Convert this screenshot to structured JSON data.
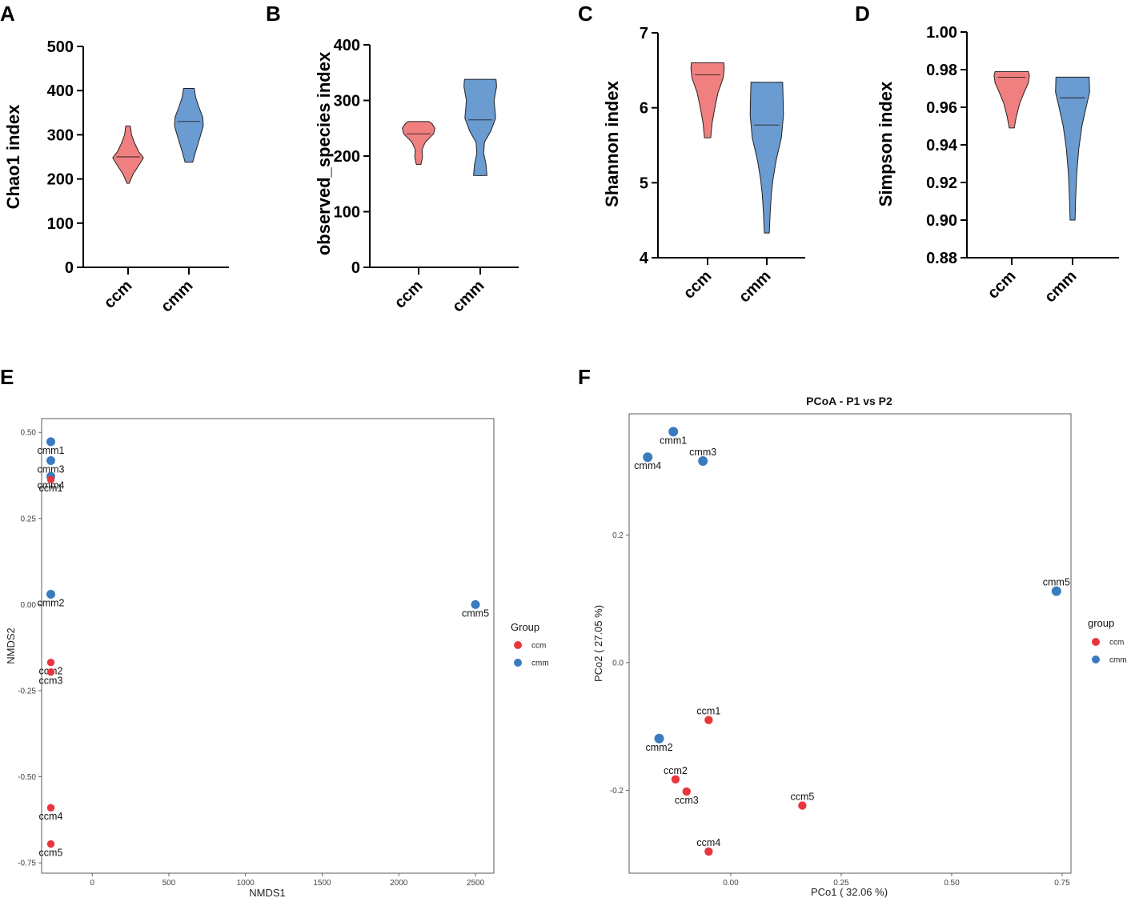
{
  "colors": {
    "violin_ccm": "#f08080",
    "violin_cmm": "#6a9bd1",
    "point_ccm": "#e8363d",
    "point_cmm": "#3a7bc0"
  },
  "chart_data": [
    {
      "panel": "A",
      "type": "violin",
      "ylabel": "Chao1 index",
      "ylim": [
        0,
        500
      ],
      "yticks": [
        0,
        100,
        200,
        300,
        400,
        500
      ],
      "categories": [
        "ccm",
        "cmm"
      ],
      "violins": [
        {
          "category": "ccm",
          "min": 190,
          "max": 320,
          "median": 250,
          "profile": [
            [
              190,
              0.06
            ],
            [
              210,
              0.25
            ],
            [
              230,
              0.55
            ],
            [
              248,
              0.8
            ],
            [
              262,
              0.55
            ],
            [
              280,
              0.35
            ],
            [
              300,
              0.18
            ],
            [
              320,
              0.12
            ]
          ]
        },
        {
          "category": "cmm",
          "min": 238,
          "max": 405,
          "median": 330,
          "profile": [
            [
              238,
              0.2
            ],
            [
              262,
              0.35
            ],
            [
              290,
              0.55
            ],
            [
              320,
              0.75
            ],
            [
              340,
              0.72
            ],
            [
              365,
              0.5
            ],
            [
              385,
              0.35
            ],
            [
              405,
              0.28
            ]
          ]
        }
      ]
    },
    {
      "panel": "B",
      "type": "violin",
      "ylabel": "observed_species index",
      "ylim": [
        0,
        400
      ],
      "yticks": [
        0,
        100,
        200,
        300,
        400
      ],
      "categories": [
        "ccm",
        "cmm"
      ],
      "violins": [
        {
          "category": "ccm",
          "min": 185,
          "max": 262,
          "median": 240,
          "profile": [
            [
              185,
              0.12
            ],
            [
              198,
              0.2
            ],
            [
              212,
              0.18
            ],
            [
              225,
              0.35
            ],
            [
              240,
              0.78
            ],
            [
              250,
              0.85
            ],
            [
              258,
              0.7
            ],
            [
              262,
              0.55
            ]
          ]
        },
        {
          "category": "cmm",
          "min": 165,
          "max": 338,
          "median": 265,
          "profile": [
            [
              165,
              0.35
            ],
            [
              185,
              0.3
            ],
            [
              205,
              0.18
            ],
            [
              225,
              0.22
            ],
            [
              245,
              0.55
            ],
            [
              268,
              0.8
            ],
            [
              300,
              0.72
            ],
            [
              325,
              0.85
            ],
            [
              338,
              0.82
            ]
          ]
        }
      ]
    },
    {
      "panel": "C",
      "type": "violin",
      "ylabel": "Shannon index",
      "ylim": [
        4,
        7
      ],
      "yticks": [
        4,
        5,
        6,
        7
      ],
      "categories": [
        "ccm",
        "cmm"
      ],
      "violins": [
        {
          "category": "ccm",
          "min": 5.6,
          "max": 6.6,
          "median": 6.44,
          "profile": [
            [
              5.6,
              0.15
            ],
            [
              5.8,
              0.22
            ],
            [
              6.0,
              0.35
            ],
            [
              6.2,
              0.5
            ],
            [
              6.4,
              0.75
            ],
            [
              6.52,
              0.8
            ],
            [
              6.6,
              0.78
            ]
          ]
        },
        {
          "category": "cmm",
          "min": 4.33,
          "max": 6.34,
          "median": 5.77,
          "profile": [
            [
              4.33,
              0.12
            ],
            [
              4.6,
              0.16
            ],
            [
              4.85,
              0.22
            ],
            [
              5.05,
              0.3
            ],
            [
              5.3,
              0.45
            ],
            [
              5.6,
              0.7
            ],
            [
              5.9,
              0.8
            ],
            [
              6.15,
              0.78
            ],
            [
              6.34,
              0.76
            ]
          ]
        }
      ]
    },
    {
      "panel": "D",
      "type": "violin",
      "ylabel": "Simpson index",
      "ylim": [
        0.88,
        1.0
      ],
      "yticks": [
        0.88,
        0.9,
        0.92,
        0.94,
        0.96,
        0.98,
        1.0
      ],
      "ytick_labels": [
        "0.88",
        "0.90",
        "0.92",
        "0.94",
        "0.96",
        "0.98",
        "1.00"
      ],
      "categories": [
        "ccm",
        "cmm"
      ],
      "violins": [
        {
          "category": "ccm",
          "min": 0.949,
          "max": 0.979,
          "median": 0.976,
          "profile": [
            [
              0.949,
              0.12
            ],
            [
              0.955,
              0.22
            ],
            [
              0.962,
              0.38
            ],
            [
              0.968,
              0.6
            ],
            [
              0.973,
              0.8
            ],
            [
              0.977,
              0.85
            ],
            [
              0.979,
              0.8
            ]
          ]
        },
        {
          "category": "cmm",
          "min": 0.9,
          "max": 0.976,
          "median": 0.965,
          "profile": [
            [
              0.9,
              0.12
            ],
            [
              0.912,
              0.15
            ],
            [
              0.925,
              0.2
            ],
            [
              0.938,
              0.3
            ],
            [
              0.95,
              0.45
            ],
            [
              0.96,
              0.65
            ],
            [
              0.968,
              0.82
            ],
            [
              0.976,
              0.8
            ]
          ]
        }
      ]
    },
    {
      "panel": "E",
      "type": "scatter",
      "title": "",
      "xlabel": "NMDS1",
      "ylabel": "NMDS2",
      "xlim": [
        -330,
        2620
      ],
      "ylim": [
        -0.78,
        0.54
      ],
      "xticks": [
        0,
        500,
        1000,
        1500,
        2000,
        2500
      ],
      "yticks": [
        -0.75,
        -0.5,
        -0.25,
        0.0,
        0.25,
        0.5
      ],
      "ytick_labels": [
        "-0.75",
        "-0.50",
        "-0.25",
        "0.00",
        "0.25",
        "0.50"
      ],
      "legend_title": "Group",
      "legend": [
        "ccm",
        "cmm"
      ],
      "points": [
        {
          "label": "cmm1",
          "group": "cmm",
          "x": -270,
          "y": 0.473,
          "label_dy": 1
        },
        {
          "label": "cmm3",
          "group": "cmm",
          "x": -270,
          "y": 0.418,
          "label_dy": 1
        },
        {
          "label": "cmm4",
          "group": "cmm",
          "x": -270,
          "y": 0.372,
          "label_dy": 1
        },
        {
          "label": "ccm1",
          "group": "ccm",
          "x": -270,
          "y": 0.363,
          "label_dy": 1
        },
        {
          "label": "cmm2",
          "group": "cmm",
          "x": -270,
          "y": 0.03,
          "label_dy": 1
        },
        {
          "label": "cmm5",
          "group": "cmm",
          "x": 2500,
          "y": 0.0,
          "label_dy": 1
        },
        {
          "label": "ccm2",
          "group": "ccm",
          "x": -270,
          "y": -0.168,
          "label_dy": 1
        },
        {
          "label": "ccm3",
          "group": "ccm",
          "x": -270,
          "y": -0.196,
          "label_dy": 1
        },
        {
          "label": "ccm4",
          "group": "ccm",
          "x": -270,
          "y": -0.59,
          "label_dy": 1
        },
        {
          "label": "ccm5",
          "group": "ccm",
          "x": -270,
          "y": -0.695,
          "label_dy": 1
        }
      ]
    },
    {
      "panel": "F",
      "type": "scatter",
      "title": "PCoA - P1 vs P2",
      "xlabel": "PCo1 ( 32.06 %)",
      "ylabel": "PCo2 ( 27.05 %)",
      "xlim": [
        -0.23,
        0.77
      ],
      "ylim": [
        -0.33,
        0.39
      ],
      "xticks": [
        0.0,
        0.25,
        0.5,
        0.75
      ],
      "xtick_labels": [
        "0.00",
        "0.25",
        "0.50",
        "0.75"
      ],
      "yticks": [
        -0.2,
        0.0,
        0.2
      ],
      "ytick_labels": [
        "-0.2",
        "0.0",
        "0.2"
      ],
      "legend_title": "group",
      "legend": [
        "ccm",
        "cmm"
      ],
      "points": [
        {
          "label": "cmm1",
          "group": "cmm",
          "x": -0.13,
          "y": 0.362,
          "label_dy": 1
        },
        {
          "label": "cmm3",
          "group": "cmm",
          "x": -0.063,
          "y": 0.316,
          "label_dy": -1
        },
        {
          "label": "cmm4",
          "group": "cmm",
          "x": -0.188,
          "y": 0.322,
          "label_dy": 1
        },
        {
          "label": "cmm5",
          "group": "cmm",
          "x": 0.737,
          "y": 0.112,
          "label_dy": -1
        },
        {
          "label": "cmm2",
          "group": "cmm",
          "x": -0.162,
          "y": -0.119,
          "label_dy": 1
        },
        {
          "label": "ccm1",
          "group": "ccm",
          "x": -0.05,
          "y": -0.09,
          "label_dy": -1
        },
        {
          "label": "ccm2",
          "group": "ccm",
          "x": -0.125,
          "y": -0.183,
          "label_dy": -1
        },
        {
          "label": "ccm3",
          "group": "ccm",
          "x": -0.1,
          "y": -0.202,
          "label_dy": 1
        },
        {
          "label": "ccm5",
          "group": "ccm",
          "x": 0.162,
          "y": -0.224,
          "label_dy": -1
        },
        {
          "label": "ccm4",
          "group": "ccm",
          "x": -0.05,
          "y": -0.296,
          "label_dy": -1
        }
      ]
    }
  ]
}
